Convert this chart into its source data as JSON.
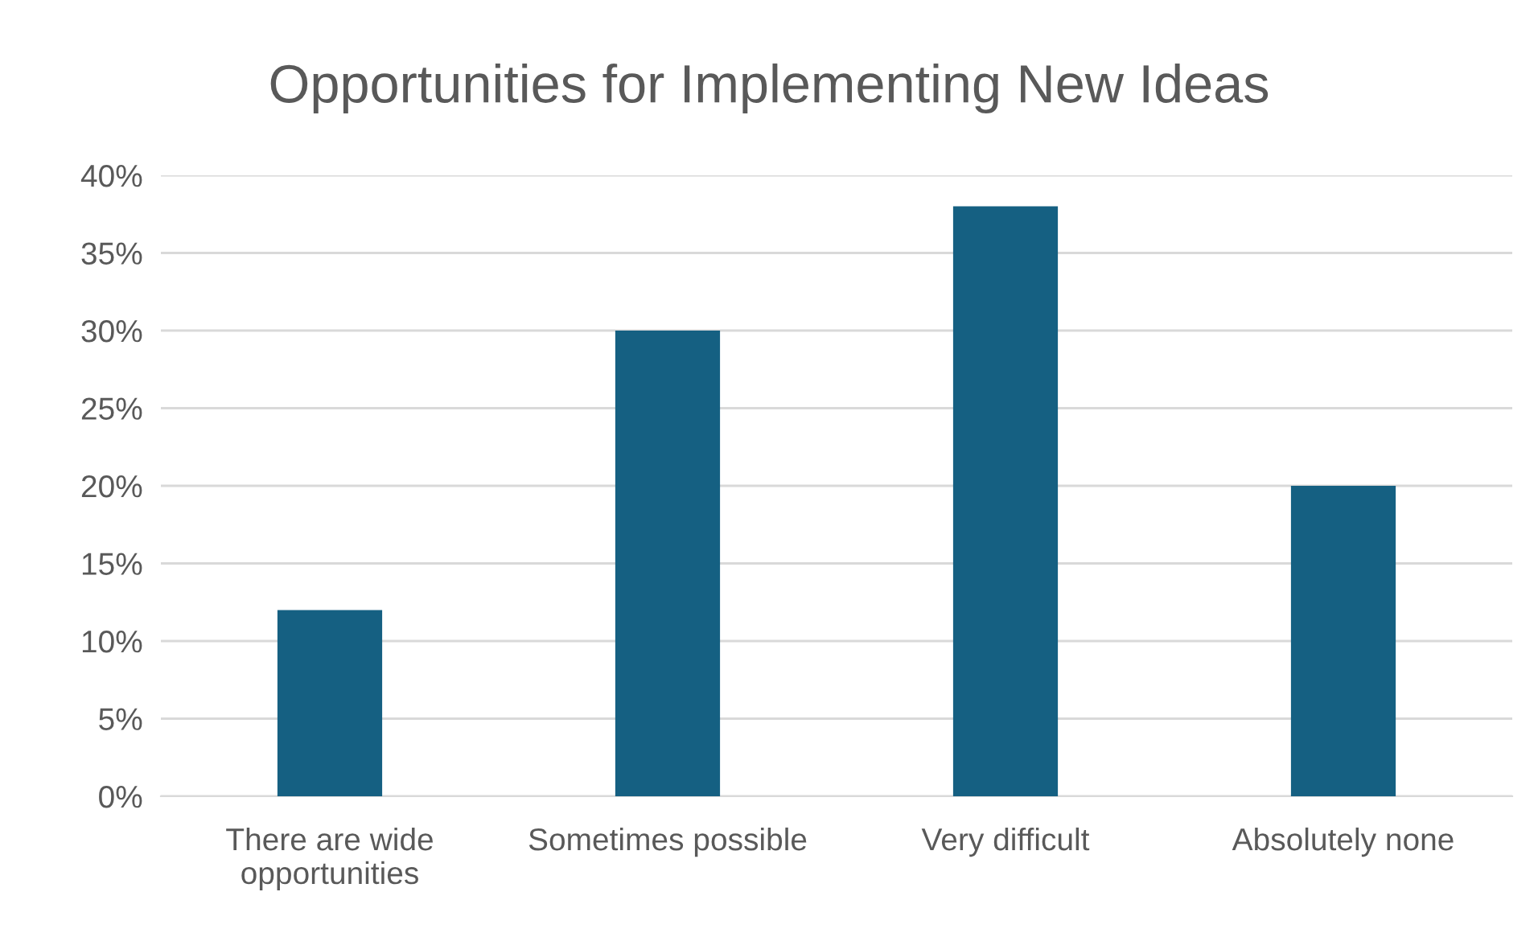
{
  "chart_data": {
    "type": "bar",
    "title": "Opportunities for Implementing New Ideas",
    "categories": [
      "There are wide\nopportunities",
      "Sometimes possible",
      "Very difficult",
      "Absolutely none"
    ],
    "values": [
      12,
      30,
      38,
      20
    ],
    "color": "#156082",
    "ylim": [
      0,
      40
    ],
    "yticks": [
      {
        "value": 0,
        "label": "0%"
      },
      {
        "value": 5,
        "label": "5%"
      },
      {
        "value": 10,
        "label": "10%"
      },
      {
        "value": 15,
        "label": "15%"
      },
      {
        "value": 20,
        "label": "20%"
      },
      {
        "value": 25,
        "label": "25%"
      },
      {
        "value": 30,
        "label": "30%"
      },
      {
        "value": 35,
        "label": "35%"
      },
      {
        "value": 40,
        "label": "40%"
      }
    ],
    "grid": "y",
    "legend": false
  }
}
